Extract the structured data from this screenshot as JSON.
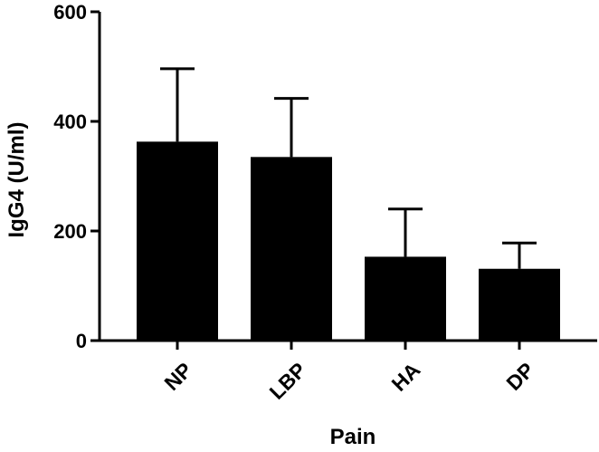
{
  "chart_data": {
    "type": "bar",
    "title": "",
    "xlabel": "Pain",
    "ylabel": "IgG4 (U/ml)",
    "categories": [
      "NP",
      "LBP",
      "HA",
      "DP"
    ],
    "values": [
      363,
      335,
      153,
      131
    ],
    "error_upper": [
      133,
      107,
      87,
      47
    ],
    "ylim": [
      0,
      600
    ],
    "yticks": [
      0,
      200,
      400,
      600
    ],
    "bar_color": "#000000",
    "grid": false,
    "legend": "none"
  }
}
